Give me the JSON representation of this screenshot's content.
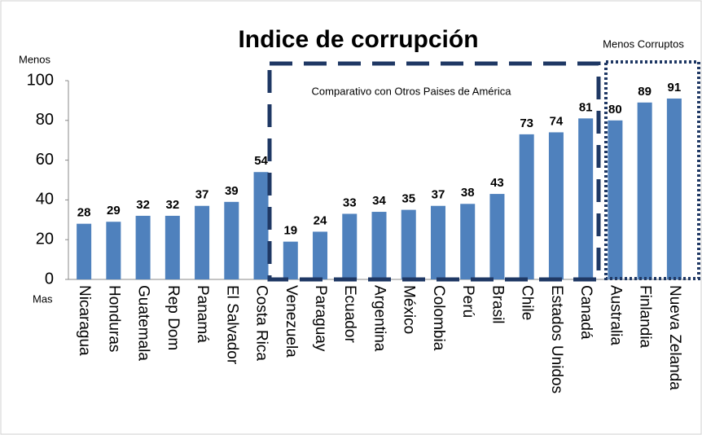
{
  "chart_data": {
    "type": "bar",
    "title": "Indice de corrupción",
    "categories": [
      "Nicaragua",
      "Honduras",
      "Guatemala",
      "Rep Dom",
      "Panamá",
      "El Salvador",
      "Costa Rica",
      "Venezuela",
      "Paraguay",
      "Ecuador",
      "Argentina",
      "México",
      "Colombia",
      "Perú",
      "Brasil",
      "Chile",
      "Estados Unidos",
      "Canadá",
      "Australia",
      "Finlandia",
      "Nueva Zelanda"
    ],
    "values": [
      28,
      29,
      32,
      32,
      37,
      39,
      54,
      19,
      24,
      33,
      34,
      35,
      37,
      38,
      43,
      73,
      74,
      81,
      80,
      89,
      91
    ],
    "color": "#4f81bd",
    "ylim": [
      0,
      100
    ],
    "yticks": [
      0,
      20,
      40,
      60,
      80,
      100
    ],
    "grid": false,
    "annotations": {
      "top_axis": "Menos",
      "bottom_axis": "Mas",
      "comparison": "Comparativo con Otros Paises de América",
      "least_corrupt": "Menos Corruptos"
    }
  }
}
